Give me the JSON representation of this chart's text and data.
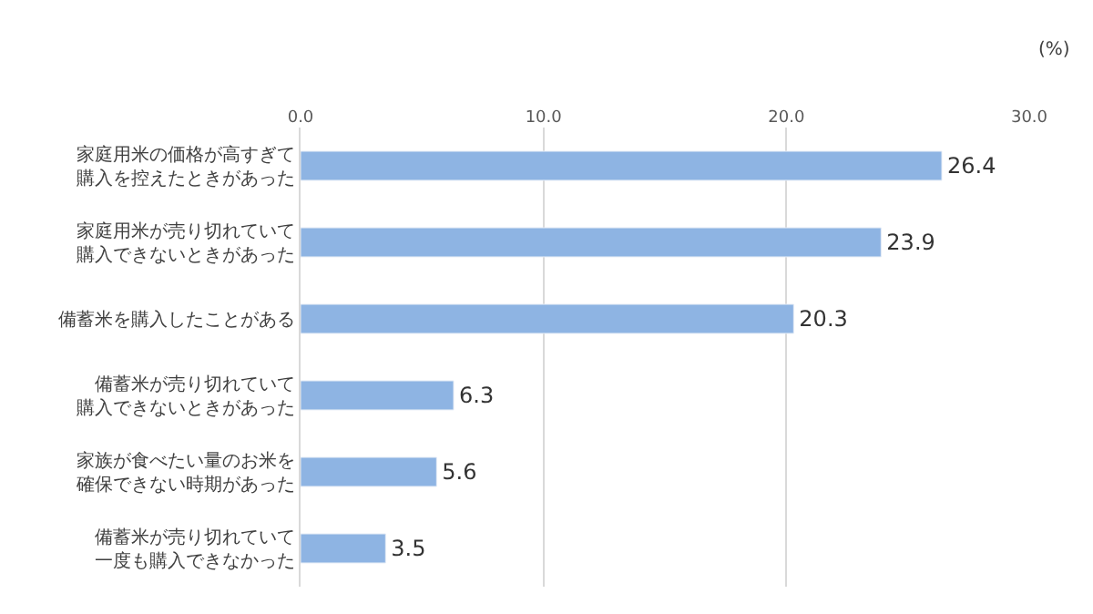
{
  "chart_data": {
    "type": "bar",
    "orientation": "horizontal",
    "xlabel": "(%)",
    "categories": [
      "家庭用米の価格が高すぎて購入を控えたときがあった",
      "家庭用米が売り切れていて購入できないときがあった",
      "備蓄米を購入したことがある",
      "備蓄米が売り切れていて購入できないときがあった",
      "家族が食べたい量のお米を確保できない時期があった",
      "備蓄米が売り切れていて一度も購入できなかった"
    ],
    "values": [
      26.4,
      23.9,
      20.3,
      6.3,
      5.6,
      3.5
    ],
    "color": "#8eb4e3",
    "xlim": [
      0,
      30
    ],
    "xticks": [
      {
        "value": 0,
        "label": "0.0"
      },
      {
        "value": 10,
        "label": "10.0"
      },
      {
        "value": 20,
        "label": "20.0"
      },
      {
        "value": 30,
        "label": "30.0"
      }
    ],
    "grid": "x",
    "data_labels": true,
    "legend": false
  }
}
